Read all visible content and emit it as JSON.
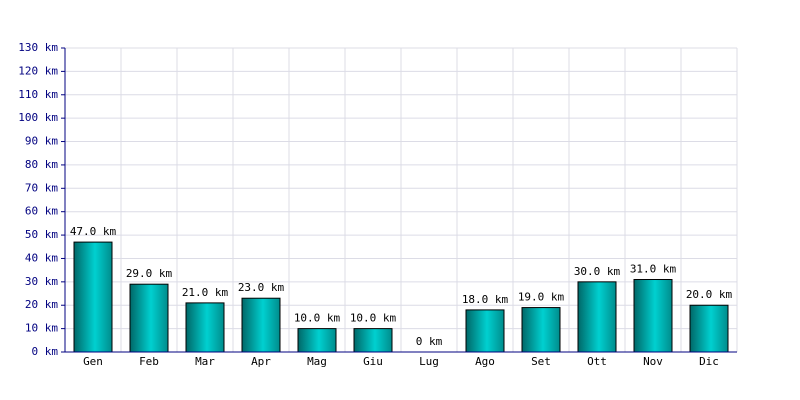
{
  "chart_data": {
    "type": "bar",
    "categories": [
      "Gen",
      "Feb",
      "Mar",
      "Apr",
      "Mag",
      "Giu",
      "Lug",
      "Ago",
      "Set",
      "Ott",
      "Nov",
      "Dic"
    ],
    "values": [
      47,
      29,
      21,
      23,
      10,
      10,
      0,
      18,
      19,
      30,
      31,
      20
    ],
    "value_labels": [
      "47.0 km",
      "29.0 km",
      "21.0 km",
      "23.0 km",
      "10.0 km",
      "10.0 km",
      "0 km",
      "18.0 km",
      "19.0 km",
      "30.0 km",
      "31.0 km",
      "20.0 km"
    ],
    "color": "#00d0d0",
    "ylim": [
      0,
      130
    ],
    "yticks": [
      {
        "value": 0,
        "label": "0 km"
      },
      {
        "value": 10,
        "label": "10 km"
      },
      {
        "value": 20,
        "label": "20 km"
      },
      {
        "value": 30,
        "label": "30 km"
      },
      {
        "value": 40,
        "label": "40 km"
      },
      {
        "value": 50,
        "label": "50 km"
      },
      {
        "value": 60,
        "label": "60 km"
      },
      {
        "value": 70,
        "label": "70 km"
      },
      {
        "value": 80,
        "label": "80 km"
      },
      {
        "value": 90,
        "label": "90 km"
      },
      {
        "value": 100,
        "label": "100 km"
      },
      {
        "value": 110,
        "label": "110 km"
      },
      {
        "value": 120,
        "label": "120 km"
      },
      {
        "value": 130,
        "label": "130 km"
      }
    ],
    "grid": true
  }
}
